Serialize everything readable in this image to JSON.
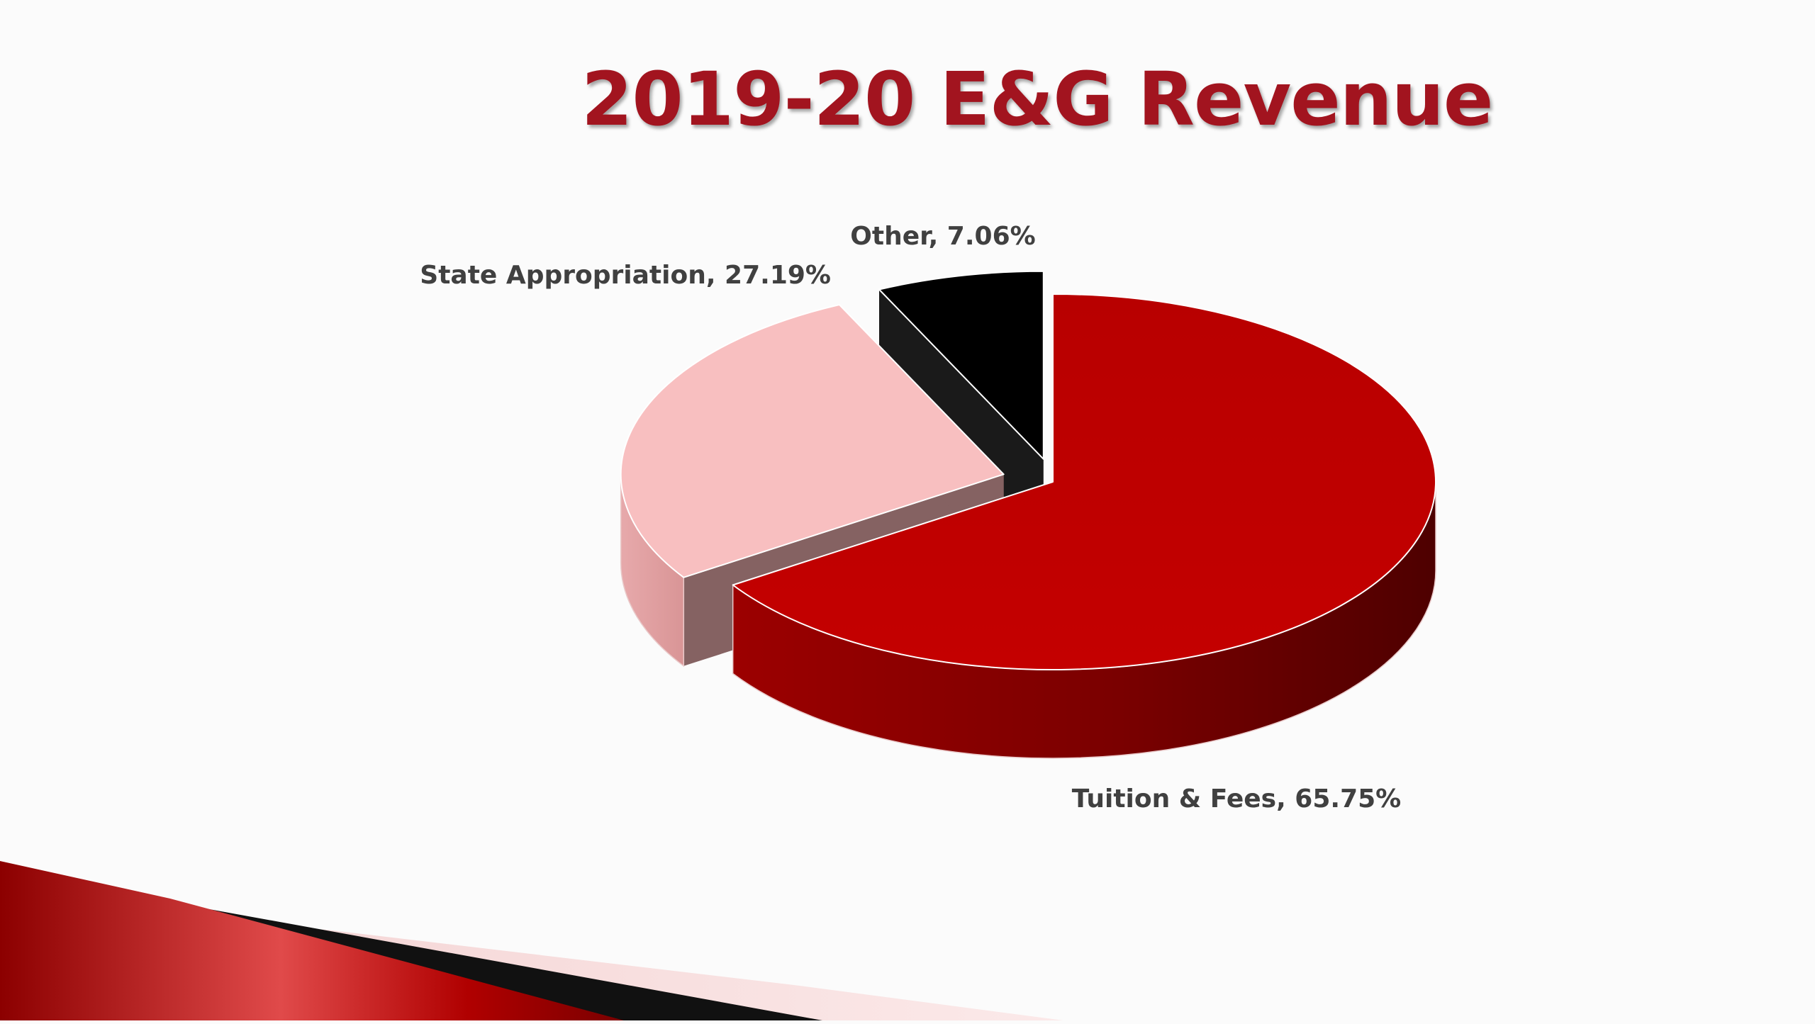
{
  "slide": {
    "title": "2019-20 E&G Revenue"
  },
  "chart_data": {
    "type": "pie",
    "title": "2019-20 E&G Revenue",
    "style": "3d-exploded",
    "labels": [
      "Tuition & Fees",
      "State Appropriation",
      "Other"
    ],
    "values": [
      65.75,
      27.19,
      7.06
    ],
    "unit": "%",
    "data_labels": [
      "Tuition & Fees, 65.75%",
      "State Appropriation, 27.19%",
      "Other, 7.06%"
    ],
    "colors": [
      "#c00000",
      "#f8bfc0",
      "#000000"
    ],
    "legend": "none"
  }
}
